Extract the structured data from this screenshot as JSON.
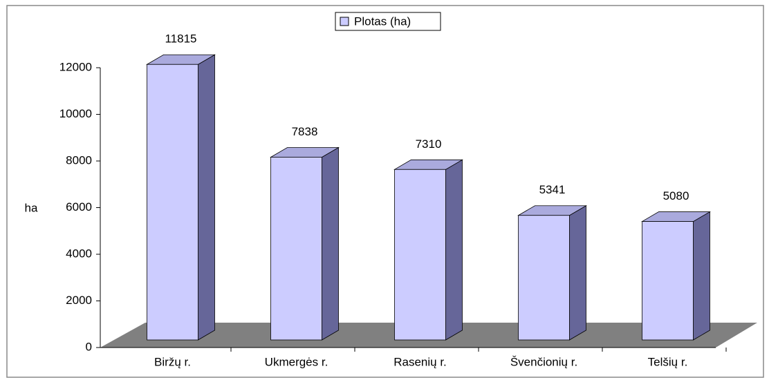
{
  "chart_data": {
    "type": "bar",
    "y_label": "ha",
    "categories": [
      "Biržų r.",
      "Ukmergės r.",
      "Rasenių r.",
      "Švenčionių r.",
      "Telšių r."
    ],
    "series": [
      {
        "name": "Plotas (ha)",
        "color": "#ccccff",
        "values": [
          11815,
          7838,
          7310,
          5341,
          5080
        ]
      }
    ],
    "ylim": [
      0,
      12000
    ],
    "yticks": [
      0,
      2000,
      4000,
      6000,
      8000,
      10000,
      12000
    ],
    "legend": "top"
  }
}
